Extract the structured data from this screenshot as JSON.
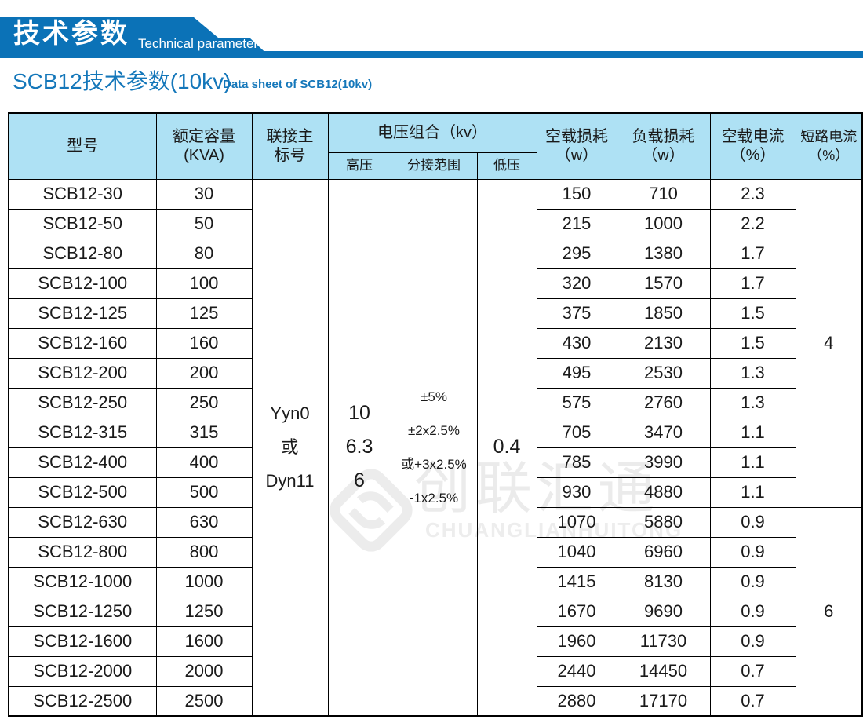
{
  "banner": {
    "title": "技术参数",
    "subtitle": "Technical parameter",
    "color": "#0b72b7"
  },
  "section": {
    "title": "SCB12技术参数(10kv)",
    "subtitle": "Data sheet of SCB12(10kv)",
    "color": "#1477ba"
  },
  "watermark": {
    "logo": "diamond-logo",
    "cn": "创联汇通",
    "en": "CHUANGLIANHUITONG"
  },
  "table": {
    "header_bg": "#aee1f4",
    "header": {
      "model": "型号",
      "capacity_l1": "额定容量",
      "capacity_l2": "(KVA)",
      "connection_l1": "联接主",
      "connection_l2": "标号",
      "voltage_group": "电压组合（kv）",
      "hv": "高压",
      "tap": "分接范围",
      "lv": "低压",
      "no_load_loss_l1": "空载损耗",
      "no_load_loss_l2": "（w）",
      "load_loss_l1": "负载损耗",
      "load_loss_l2": "（w）",
      "no_load_current_l1": "空载电流",
      "no_load_current_l2": "（%）",
      "short_circuit_l1": "短路电流",
      "short_circuit_l2": "（%）"
    },
    "merged": {
      "connection": [
        "Yyn0",
        "或",
        "Dyn11"
      ],
      "hv": [
        "10",
        "6.3",
        "6"
      ],
      "tap": [
        "±5%",
        "±2x2.5%",
        "或+3x2.5%",
        "-1x2.5%"
      ],
      "lv": [
        "0.4"
      ],
      "short_circuit_rows_1_11": "4",
      "short_circuit_rows_12_18": "6"
    },
    "rows": [
      {
        "model": "SCB12-30",
        "capacity": "30",
        "no_load_loss": "150",
        "load_loss": "710",
        "no_load_current": "2.3"
      },
      {
        "model": "SCB12-50",
        "capacity": "50",
        "no_load_loss": "215",
        "load_loss": "1000",
        "no_load_current": "2.2"
      },
      {
        "model": "SCB12-80",
        "capacity": "80",
        "no_load_loss": "295",
        "load_loss": "1380",
        "no_load_current": "1.7"
      },
      {
        "model": "SCB12-100",
        "capacity": "100",
        "no_load_loss": "320",
        "load_loss": "1570",
        "no_load_current": "1.7"
      },
      {
        "model": "SCB12-125",
        "capacity": "125",
        "no_load_loss": "375",
        "load_loss": "1850",
        "no_load_current": "1.5"
      },
      {
        "model": "SCB12-160",
        "capacity": "160",
        "no_load_loss": "430",
        "load_loss": "2130",
        "no_load_current": "1.5"
      },
      {
        "model": "SCB12-200",
        "capacity": "200",
        "no_load_loss": "495",
        "load_loss": "2530",
        "no_load_current": "1.3"
      },
      {
        "model": "SCB12-250",
        "capacity": "250",
        "no_load_loss": "575",
        "load_loss": "2760",
        "no_load_current": "1.3"
      },
      {
        "model": "SCB12-315",
        "capacity": "315",
        "no_load_loss": "705",
        "load_loss": "3470",
        "no_load_current": "1.1"
      },
      {
        "model": "SCB12-400",
        "capacity": "400",
        "no_load_loss": "785",
        "load_loss": "3990",
        "no_load_current": "1.1"
      },
      {
        "model": "SCB12-500",
        "capacity": "500",
        "no_load_loss": "930",
        "load_loss": "4880",
        "no_load_current": "1.1"
      },
      {
        "model": "SCB12-630",
        "capacity": "630",
        "no_load_loss": "1070",
        "load_loss": "5880",
        "no_load_current": "0.9"
      },
      {
        "model": "SCB12-800",
        "capacity": "800",
        "no_load_loss": "1040",
        "load_loss": "6960",
        "no_load_current": "0.9"
      },
      {
        "model": "SCB12-1000",
        "capacity": "1000",
        "no_load_loss": "1415",
        "load_loss": "8130",
        "no_load_current": "0.9"
      },
      {
        "model": "SCB12-1250",
        "capacity": "1250",
        "no_load_loss": "1670",
        "load_loss": "9690",
        "no_load_current": "0.9"
      },
      {
        "model": "SCB12-1600",
        "capacity": "1600",
        "no_load_loss": "1960",
        "load_loss": "11730",
        "no_load_current": "0.9"
      },
      {
        "model": "SCB12-2000",
        "capacity": "2000",
        "no_load_loss": "2440",
        "load_loss": "14450",
        "no_load_current": "0.7"
      },
      {
        "model": "SCB12-2500",
        "capacity": "2500",
        "no_load_loss": "2880",
        "load_loss": "17170",
        "no_load_current": "0.7"
      }
    ]
  }
}
